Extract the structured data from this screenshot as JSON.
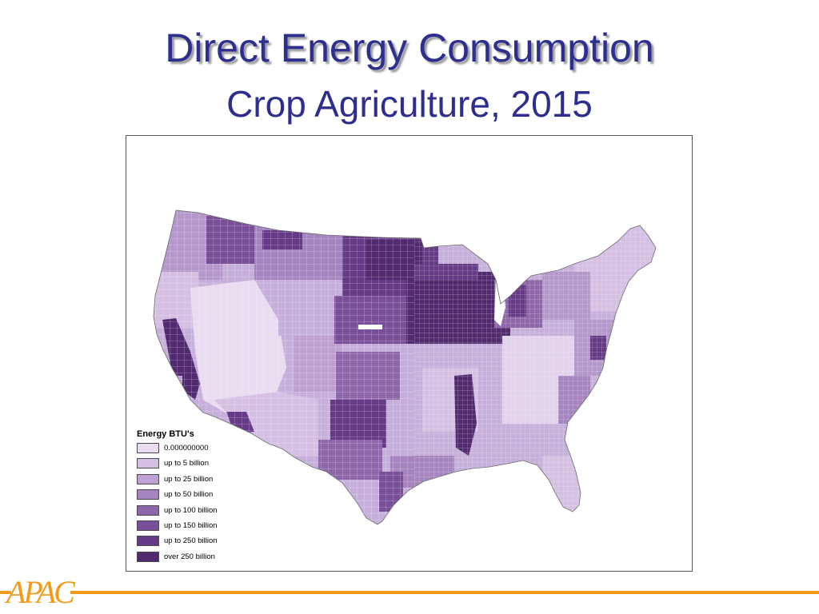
{
  "slide": {
    "title": "Direct Energy Consumption",
    "subtitle": "Crop Agriculture, 2015"
  },
  "map": {
    "region": "Contiguous United States, county level",
    "legend": {
      "title": "Energy BTU's",
      "items": [
        {
          "label": "0.000000000",
          "color": "#e9dcf0"
        },
        {
          "label": "up to 5 billion",
          "color": "#d5bfe3"
        },
        {
          "label": "up to 25 billion",
          "color": "#bea1d2"
        },
        {
          "label": "up to 50 billion",
          "color": "#a684bf"
        },
        {
          "label": "up to 100 billion",
          "color": "#8e67ab"
        },
        {
          "label": "up to 150 billion",
          "color": "#7a4f99"
        },
        {
          "label": "up to 250 billion",
          "color": "#663a86"
        },
        {
          "label": "over 250 billion",
          "color": "#522a70"
        }
      ]
    }
  },
  "footer": {
    "logo_text": "APAC",
    "accent_color": "#f29b1a"
  }
}
